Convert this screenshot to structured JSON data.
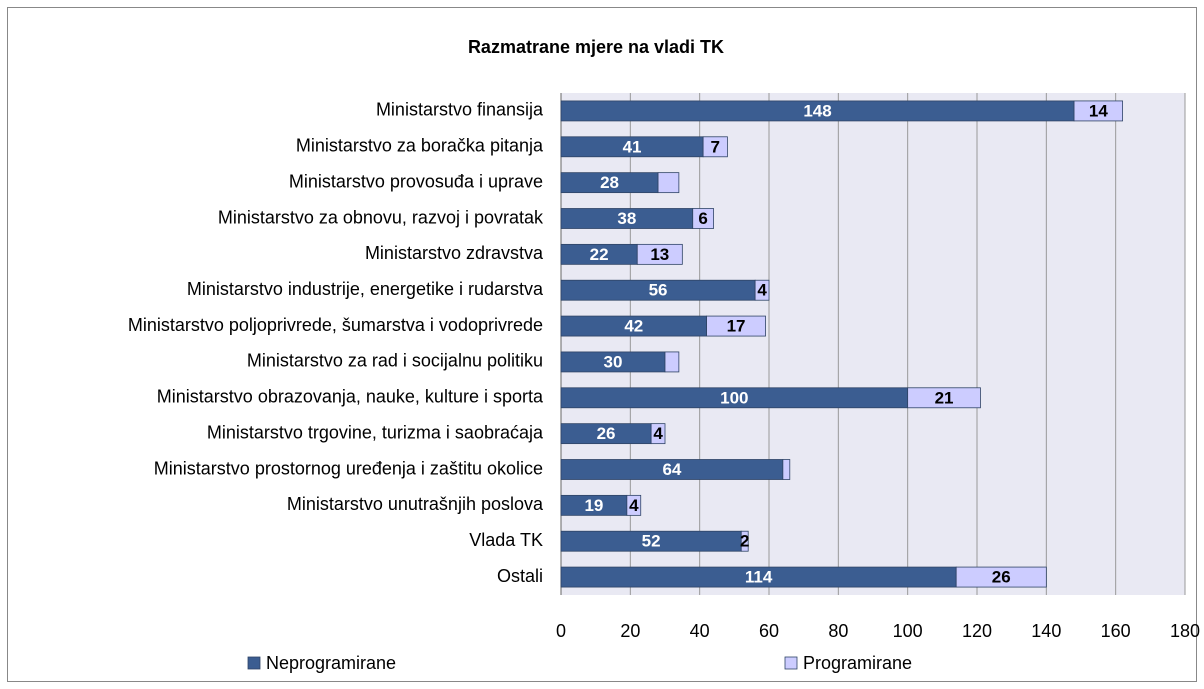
{
  "chart_data": {
    "type": "bar",
    "orientation": "horizontal",
    "stacked": true,
    "title": "Razmatrane mjere na vladi TK",
    "categories": [
      "Ministarstvo finansija",
      "Ministarstvo za boračka pitanja",
      "Ministarstvo provosuđa i uprave",
      "Ministarstvo za obnovu, razvoj i povratak",
      "Ministarstvo zdravstva",
      "Ministarstvo industrije, energetike i rudarstva",
      "Ministarstvo poljoprivrede, šumarstva i vodoprivrede",
      "Ministarstvo za rad i socijalnu politiku",
      "Ministarstvo obrazovanja, nauke, kulture i sporta",
      "Ministarstvo trgovine, turizma i saobraćaja",
      "Ministarstvo prostornog uređenja i zaštitu okolice",
      "Ministarstvo unutrašnjih poslova",
      "Vlada TK",
      "Ostali"
    ],
    "series": [
      {
        "name": "Neprogramirane",
        "color": "#3b5d91",
        "label_color": "#ffffff",
        "values": [
          148,
          41,
          28,
          38,
          22,
          56,
          42,
          30,
          100,
          26,
          64,
          19,
          52,
          114
        ]
      },
      {
        "name": "Programirane",
        "color": "#ccccff",
        "label_color": "#000000",
        "values": [
          14,
          7,
          6,
          6,
          13,
          4,
          17,
          4,
          21,
          4,
          2,
          4,
          2,
          26
        ],
        "value_labels": [
          14,
          7,
          null,
          6,
          13,
          4,
          17,
          null,
          21,
          4,
          null,
          4,
          2,
          26
        ]
      }
    ],
    "xlim": [
      0,
      180
    ],
    "xticks": [
      0,
      20,
      40,
      60,
      80,
      100,
      120,
      140,
      160,
      180
    ],
    "grid": true
  }
}
